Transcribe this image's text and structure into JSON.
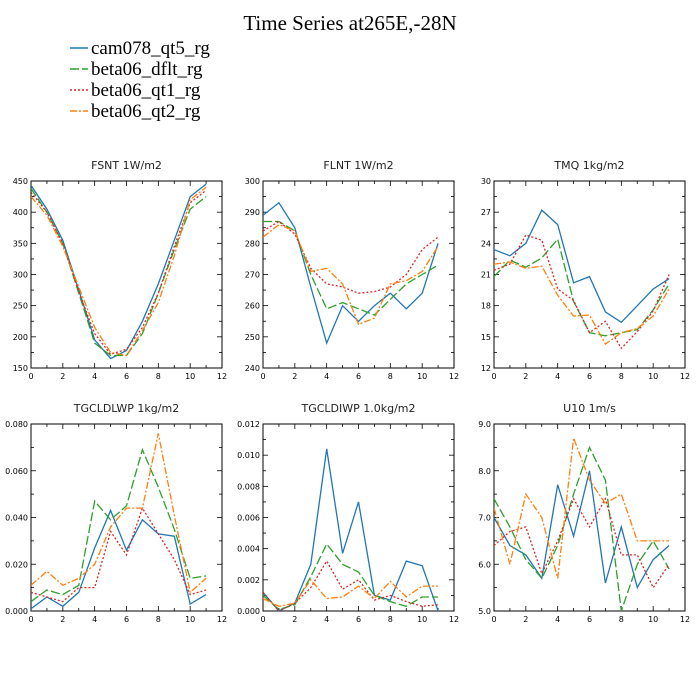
{
  "figure": {
    "title": "Time Series at265E,-28N"
  },
  "colors": {
    "cam078_qt5_rg": "#1f77b4",
    "beta06_dflt_rg": "#2ca02c",
    "beta06_qt1_rg": "#d62728",
    "beta06_qt2_rg": "#ff7f0e"
  },
  "legend": [
    {
      "name": "cam078_qt5_rg",
      "color": "#1f77b4",
      "dash": "solid"
    },
    {
      "name": "beta06_dflt_rg",
      "color": "#2ca02c",
      "dash": "longdash"
    },
    {
      "name": "beta06_qt1_rg",
      "color": "#d62728",
      "dash": "dotted"
    },
    {
      "name": "beta06_qt2_rg",
      "color": "#ff7f0e",
      "dash": "dashdot"
    }
  ],
  "chart_data": [
    {
      "type": "line",
      "title": "FSNT   1W/m2",
      "xlim": [
        0,
        12
      ],
      "ylim": [
        150,
        450
      ],
      "xticks": [
        0,
        2,
        4,
        6,
        8,
        10,
        12
      ],
      "yticks": [
        150,
        200,
        250,
        300,
        350,
        400,
        450
      ],
      "yticklabels": [
        "150",
        "200",
        "250",
        "300",
        "350",
        "400",
        "450"
      ],
      "x": [
        0,
        1,
        2,
        3,
        4,
        5,
        6,
        7,
        8,
        9,
        10,
        11
      ],
      "series": [
        {
          "name": "cam078_qt5_rg",
          "values": [
            443,
            405,
            355,
            275,
            195,
            165,
            178,
            225,
            285,
            355,
            425,
            445
          ]
        },
        {
          "name": "beta06_dflt_rg",
          "values": [
            438,
            400,
            350,
            270,
            190,
            170,
            170,
            205,
            270,
            340,
            405,
            425
          ]
        },
        {
          "name": "beta06_qt1_rg",
          "values": [
            432,
            400,
            350,
            272,
            205,
            172,
            180,
            215,
            270,
            345,
            415,
            435
          ]
        },
        {
          "name": "beta06_qt2_rg",
          "values": [
            425,
            395,
            345,
            280,
            215,
            175,
            170,
            210,
            255,
            330,
            420,
            440
          ]
        }
      ]
    },
    {
      "type": "line",
      "title": "FLNT   1W/m2",
      "xlim": [
        0,
        12
      ],
      "ylim": [
        240,
        300
      ],
      "xticks": [
        0,
        2,
        4,
        6,
        8,
        10,
        12
      ],
      "yticks": [
        240,
        250,
        260,
        270,
        280,
        290,
        300
      ],
      "yticklabels": [
        "240",
        "250",
        "260",
        "270",
        "280",
        "290",
        "300"
      ],
      "x": [
        0,
        1,
        2,
        3,
        4,
        5,
        6,
        7,
        8,
        9,
        10,
        11
      ],
      "series": [
        {
          "name": "cam078_qt5_rg",
          "values": [
            289,
            293,
            285,
            266,
            248,
            260,
            255,
            260,
            264,
            259,
            264,
            280
          ]
        },
        {
          "name": "beta06_dflt_rg",
          "values": [
            287,
            287,
            284,
            270,
            259,
            261,
            259,
            257,
            262,
            267,
            270,
            273
          ]
        },
        {
          "name": "beta06_qt1_rg",
          "values": [
            284,
            287,
            283,
            272,
            267,
            266,
            264,
            264.5,
            266,
            270,
            278,
            282
          ]
        },
        {
          "name": "beta06_qt2_rg",
          "values": [
            282,
            286,
            284,
            271,
            272,
            267,
            254,
            256,
            267,
            268,
            271,
            279
          ]
        }
      ]
    },
    {
      "type": "line",
      "title": "TMQ   1kg/m2",
      "xlim": [
        0,
        12
      ],
      "ylim": [
        12,
        30
      ],
      "xticks": [
        0,
        2,
        4,
        6,
        8,
        10,
        12
      ],
      "yticks": [
        12,
        15,
        18,
        21,
        24,
        27,
        30
      ],
      "yticklabels": [
        "12",
        "15",
        "18",
        "21",
        "24",
        "27",
        "30"
      ],
      "x": [
        0,
        1,
        2,
        3,
        4,
        5,
        6,
        7,
        8,
        9,
        10,
        11
      ],
      "series": [
        {
          "name": "cam078_qt5_rg",
          "values": [
            23.4,
            22.8,
            24.0,
            27.2,
            25.8,
            20.2,
            20.8,
            17.4,
            16.4,
            18.0,
            19.6,
            20.6
          ]
        },
        {
          "name": "beta06_dflt_rg",
          "values": [
            20.8,
            22.4,
            21.7,
            22.6,
            24.4,
            18.4,
            15.4,
            15.1,
            15.4,
            15.7,
            17.6,
            20.1
          ]
        },
        {
          "name": "beta06_qt1_rg",
          "values": [
            21.4,
            22.0,
            24.8,
            24.3,
            19.6,
            18.5,
            15.4,
            16.5,
            13.9,
            15.5,
            17.5,
            21.0
          ]
        },
        {
          "name": "beta06_qt2_rg",
          "values": [
            22.0,
            22.2,
            21.6,
            21.8,
            19.0,
            17.0,
            17.1,
            14.3,
            15.4,
            15.8,
            17.0,
            19.6
          ]
        }
      ]
    },
    {
      "type": "line",
      "title": "TGCLDLWP   1kg/m2",
      "xlim": [
        0,
        12
      ],
      "ylim": [
        0,
        0.08
      ],
      "xticks": [
        0,
        2,
        4,
        6,
        8,
        10,
        12
      ],
      "yticks": [
        0,
        0.02,
        0.04,
        0.06,
        0.08
      ],
      "yticklabels": [
        "0.000",
        "0.020",
        "0.040",
        "0.060",
        "0.080"
      ],
      "x": [
        0,
        1,
        2,
        3,
        4,
        5,
        6,
        7,
        8,
        9,
        10,
        11
      ],
      "series": [
        {
          "name": "cam078_qt5_rg",
          "values": [
            0.001,
            0.006,
            0.002,
            0.008,
            0.027,
            0.043,
            0.026,
            0.039,
            0.033,
            0.032,
            0.003,
            0.007
          ]
        },
        {
          "name": "beta06_dflt_rg",
          "values": [
            0.004,
            0.009,
            0.007,
            0.011,
            0.047,
            0.039,
            0.045,
            0.069,
            0.053,
            0.035,
            0.014,
            0.015
          ]
        },
        {
          "name": "beta06_qt1_rg",
          "values": [
            0.008,
            0.006,
            0.004,
            0.01,
            0.01,
            0.034,
            0.024,
            0.044,
            0.033,
            0.022,
            0.007,
            0.009
          ]
        },
        {
          "name": "beta06_qt2_rg",
          "values": [
            0.011,
            0.017,
            0.011,
            0.014,
            0.02,
            0.036,
            0.044,
            0.044,
            0.076,
            0.041,
            0.008,
            0.014
          ]
        }
      ]
    },
    {
      "type": "line",
      "title": "TGCLDIWP   1.0kg/m2",
      "xlim": [
        0,
        12
      ],
      "ylim": [
        0,
        0.012
      ],
      "xticks": [
        0,
        2,
        4,
        6,
        8,
        10,
        12
      ],
      "yticks": [
        0,
        0.002,
        0.004,
        0.006,
        0.008,
        0.01,
        0.012
      ],
      "yticklabels": [
        "0.000",
        "0.002",
        "0.004",
        "0.006",
        "0.008",
        "0.010",
        "0.012"
      ],
      "x": [
        0,
        1,
        2,
        3,
        4,
        5,
        6,
        7,
        8,
        9,
        10,
        11
      ],
      "series": [
        {
          "name": "cam078_qt5_rg",
          "values": [
            0.0012,
            0.0,
            0.0005,
            0.003,
            0.0104,
            0.0037,
            0.007,
            0.001,
            0.0007,
            0.0032,
            0.0029,
            0.0
          ]
        },
        {
          "name": "beta06_dflt_rg",
          "values": [
            0.001,
            0.0001,
            0.0004,
            0.0022,
            0.0043,
            0.003,
            0.0025,
            0.001,
            0.0006,
            0.0003,
            0.0009,
            0.0009
          ]
        },
        {
          "name": "beta06_qt1_rg",
          "values": [
            0.0012,
            0.0,
            0.0005,
            0.0015,
            0.0032,
            0.0014,
            0.002,
            0.0007,
            0.001,
            0.0006,
            0.0003,
            0.0004
          ]
        },
        {
          "name": "beta06_qt2_rg",
          "values": [
            0.0008,
            0.0003,
            0.0005,
            0.002,
            0.0008,
            0.0009,
            0.0016,
            0.0008,
            0.0019,
            0.0009,
            0.0016,
            0.0016
          ]
        }
      ]
    },
    {
      "type": "line",
      "title": "U10   1m/s",
      "xlim": [
        0,
        12
      ],
      "ylim": [
        5,
        9
      ],
      "xticks": [
        0,
        2,
        4,
        6,
        8,
        10,
        12
      ],
      "yticks": [
        5,
        6,
        7,
        8,
        9
      ],
      "yticklabels": [
        "5.0",
        "6.0",
        "7.0",
        "8.0",
        "9.0"
      ],
      "x": [
        0,
        1,
        2,
        3,
        4,
        5,
        6,
        7,
        8,
        9,
        10,
        11
      ],
      "series": [
        {
          "name": "cam078_qt5_rg",
          "values": [
            7.0,
            6.4,
            6.2,
            5.7,
            7.7,
            6.6,
            8.0,
            5.6,
            6.8,
            5.5,
            6.1,
            6.4
          ]
        },
        {
          "name": "beta06_dflt_rg",
          "values": [
            7.4,
            6.8,
            6.1,
            5.7,
            6.4,
            7.5,
            8.5,
            7.8,
            5.0,
            6.0,
            6.5,
            5.9
          ]
        },
        {
          "name": "beta06_qt1_rg",
          "values": [
            6.4,
            6.7,
            6.8,
            5.8,
            6.5,
            7.4,
            6.8,
            7.4,
            6.2,
            6.2,
            5.5,
            6.0
          ]
        },
        {
          "name": "beta06_qt2_rg",
          "values": [
            7.2,
            6.0,
            7.5,
            7.0,
            5.7,
            8.7,
            7.8,
            7.3,
            7.5,
            6.5,
            6.5,
            6.5
          ]
        }
      ]
    }
  ]
}
